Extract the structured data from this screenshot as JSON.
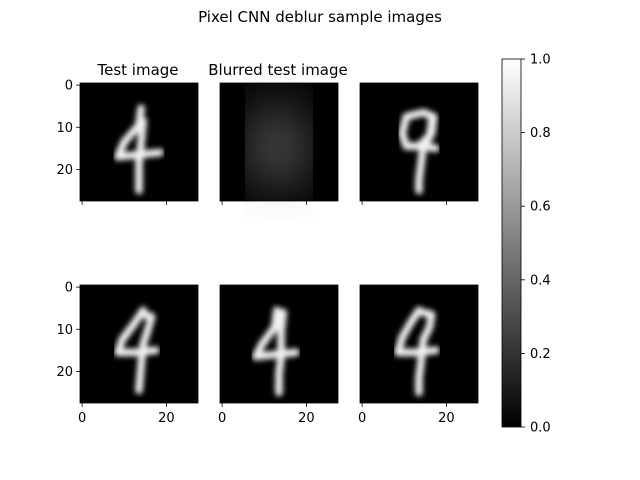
{
  "chart_data": {
    "type": "heatmap",
    "title": "Pixel CNN deblur sample images",
    "colormap": "gray",
    "panels": [
      {
        "row": 0,
        "col": 0,
        "title": "Test image",
        "image": "test-digit-4"
      },
      {
        "row": 0,
        "col": 1,
        "title": "Blurred test image",
        "image": "blurred-digit-4"
      },
      {
        "row": 0,
        "col": 2,
        "title": "",
        "image": "deblurred-sample-1"
      },
      {
        "row": 1,
        "col": 0,
        "title": "",
        "image": "deblurred-sample-2"
      },
      {
        "row": 1,
        "col": 1,
        "title": "",
        "image": "deblurred-sample-3"
      },
      {
        "row": 1,
        "col": 2,
        "title": "",
        "image": "deblurred-sample-4"
      }
    ],
    "image_size": [
      28,
      28
    ],
    "y_ticks": [
      "0",
      "10",
      "20"
    ],
    "x_ticks": [
      "0",
      "20"
    ],
    "xlim": [
      0,
      28
    ],
    "ylim": [
      28,
      0
    ],
    "colorbar": {
      "range": [
        0.0,
        1.0
      ],
      "ticks": [
        "0.0",
        "0.2",
        "0.4",
        "0.6",
        "0.8",
        "1.0"
      ]
    }
  }
}
